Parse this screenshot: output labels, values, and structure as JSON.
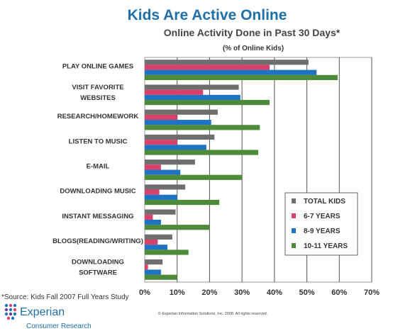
{
  "title": "Kids Are Active Online",
  "subtitle": "Online Activity Done in Past 30 Days*",
  "unit_note": "(% of Online Kids)",
  "source_note": "*Source:  Kids Fall 2007 Full Years Study",
  "copyright": "© Experian Information Solutions, Inc. 2008. All rights reserved.",
  "brand": {
    "name": "Experian",
    "tagline": "Consumer Research"
  },
  "colors": {
    "total_kids": "#6e6e6e",
    "age_6_7": "#d9406a",
    "age_8_9": "#1f73c2",
    "age_10_11": "#4d8a3a",
    "title": "#1f6fa8"
  },
  "chart_data": {
    "type": "bar",
    "orientation": "horizontal",
    "title": "Online Activity Done in Past 30 Days*",
    "subtitle": "(% of Online Kids)",
    "categories": [
      [
        "PLAY ONLINE GAMES"
      ],
      [
        "VISIT FAVORITE",
        "WEBSITES"
      ],
      [
        "RESEARCH/HOMEWORK"
      ],
      [
        "LISTEN TO MUSIC"
      ],
      [
        "E-MAIL"
      ],
      [
        "DOWNLOADING MUSIC"
      ],
      [
        "INSTANT MESSAGING"
      ],
      [
        "BLOGS(READING/WRITING)"
      ],
      [
        "DOWNLOADING",
        "SOFTWARE"
      ]
    ],
    "series": [
      {
        "name": "TOTAL KIDS",
        "color": "#6e6e6e",
        "values": [
          50.5,
          29,
          22.5,
          21.5,
          15.5,
          12.5,
          9.5,
          8.5,
          5.5
        ]
      },
      {
        "name": "6-7 YEARS",
        "color": "#d9406a",
        "values": [
          38.5,
          18,
          10,
          10,
          5,
          4.5,
          2.5,
          4,
          1
        ]
      },
      {
        "name": "8-9 YEARS",
        "color": "#1f73c2",
        "values": [
          53,
          29.5,
          20.5,
          19,
          11,
          10,
          5,
          7,
          5
        ]
      },
      {
        "name": "10-11 YEARS",
        "color": "#4d8a3a",
        "values": [
          59.5,
          38.5,
          35.5,
          35,
          30,
          23,
          20,
          13.5,
          10
        ]
      }
    ],
    "xlim": [
      0,
      70
    ],
    "xticks": [
      "0%",
      "10%",
      "20%",
      "30%",
      "40%",
      "50%",
      "60%",
      "70%"
    ],
    "grid": true,
    "legend_position": "bottom-right"
  }
}
